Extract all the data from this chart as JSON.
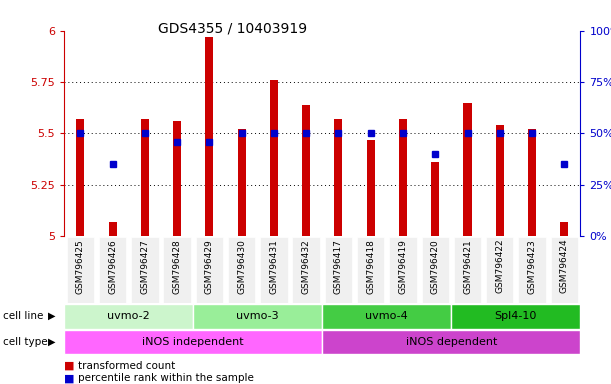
{
  "title": "GDS4355 / 10403919",
  "samples": [
    "GSM796425",
    "GSM796426",
    "GSM796427",
    "GSM796428",
    "GSM796429",
    "GSM796430",
    "GSM796431",
    "GSM796432",
    "GSM796417",
    "GSM796418",
    "GSM796419",
    "GSM796420",
    "GSM796421",
    "GSM796422",
    "GSM796423",
    "GSM796424"
  ],
  "transformed_count": [
    5.57,
    5.07,
    5.57,
    5.56,
    5.97,
    5.52,
    5.76,
    5.64,
    5.57,
    5.47,
    5.57,
    5.36,
    5.65,
    5.54,
    5.52,
    5.07
  ],
  "percentile_rank": [
    50,
    35,
    50,
    46,
    46,
    50,
    50,
    50,
    50,
    50,
    50,
    40,
    50,
    50,
    50,
    35
  ],
  "ylim_left": [
    5.0,
    6.0
  ],
  "ylim_right": [
    0,
    100
  ],
  "yticks_left": [
    5.0,
    5.25,
    5.5,
    5.75,
    6.0
  ],
  "ytick_labels_left": [
    "5",
    "5.25",
    "5.5",
    "5.75",
    "6"
  ],
  "yticks_right": [
    0,
    25,
    50,
    75,
    100
  ],
  "ytick_labels_right": [
    "0%",
    "25%",
    "50%",
    "75%",
    "100%"
  ],
  "cell_lines": [
    {
      "label": "uvmo-2",
      "start": 0,
      "end": 3,
      "color": "#ccf5cc"
    },
    {
      "label": "uvmo-3",
      "start": 4,
      "end": 7,
      "color": "#99ee99"
    },
    {
      "label": "uvmo-4",
      "start": 8,
      "end": 11,
      "color": "#44cc44"
    },
    {
      "label": "Spl4-10",
      "start": 12,
      "end": 15,
      "color": "#22bb22"
    }
  ],
  "cell_types": [
    {
      "label": "iNOS independent",
      "start": 0,
      "end": 7,
      "color": "#ff66ff"
    },
    {
      "label": "iNOS dependent",
      "start": 8,
      "end": 15,
      "color": "#cc44cc"
    }
  ],
  "bar_color": "#cc0000",
  "dot_color": "#0000cc",
  "bar_bottom": 5.0,
  "bar_width": 0.25,
  "dot_size": 30,
  "grid_color": "black",
  "grid_linewidth": 0.7,
  "left_axis_color": "#cc0000",
  "right_axis_color": "#0000cc",
  "bg_color": "#f0f0f0"
}
